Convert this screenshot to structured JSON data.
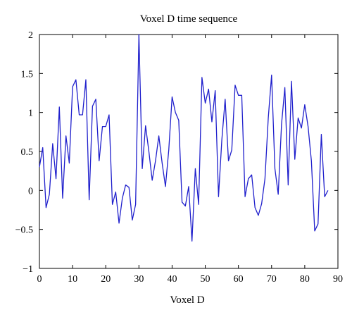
{
  "chart_data": {
    "type": "line",
    "title": "Voxel D time sequence",
    "xlabel": "Voxel D",
    "ylabel": "",
    "xlim": [
      0,
      90
    ],
    "ylim": [
      -1,
      2
    ],
    "xticks": [
      "0",
      "10",
      "20",
      "30",
      "40",
      "50",
      "60",
      "70",
      "80",
      "90"
    ],
    "yticks": [
      "2",
      "1.5",
      "1",
      "0.5",
      "0",
      "−0.5",
      "−1"
    ],
    "grid": false,
    "series": [
      {
        "color": "#1f1fcc",
        "x": [
          0,
          1,
          2,
          3,
          4,
          5,
          6,
          7,
          8,
          9,
          10,
          11,
          12,
          13,
          14,
          15,
          16,
          17,
          18,
          19,
          20,
          21,
          22,
          23,
          24,
          25,
          26,
          27,
          28,
          29,
          30,
          31,
          32,
          33,
          34,
          35,
          36,
          37,
          38,
          39,
          40,
          41,
          42,
          43,
          44,
          45,
          46,
          47,
          48,
          49,
          50,
          51,
          52,
          53,
          54,
          55,
          56,
          57,
          58,
          59,
          60,
          61,
          62,
          63,
          64,
          65,
          66,
          67,
          68,
          69,
          70,
          71,
          72,
          73,
          74,
          75,
          76,
          77,
          78,
          79,
          80,
          81,
          82,
          83,
          84,
          85,
          86,
          87
        ],
        "y": [
          0.3,
          0.55,
          -0.22,
          -0.05,
          0.6,
          0.15,
          1.07,
          -0.1,
          0.7,
          0.35,
          1.33,
          1.42,
          0.97,
          0.97,
          1.42,
          -0.12,
          1.08,
          1.17,
          0.38,
          0.82,
          0.82,
          0.97,
          -0.18,
          -0.02,
          -0.42,
          -0.1,
          0.07,
          0.04,
          -0.38,
          -0.18,
          2.0,
          0.28,
          0.83,
          0.5,
          0.13,
          0.38,
          0.7,
          0.35,
          0.05,
          0.52,
          1.2,
          1.0,
          0.9,
          -0.15,
          -0.2,
          0.05,
          -0.65,
          0.28,
          -0.18,
          1.45,
          1.12,
          1.3,
          0.88,
          1.28,
          -0.08,
          0.65,
          1.17,
          0.38,
          0.52,
          1.35,
          1.22,
          1.22,
          -0.08,
          0.15,
          0.2,
          -0.22,
          -0.32,
          -0.17,
          0.15,
          0.93,
          1.48,
          0.28,
          -0.05,
          0.85,
          1.32,
          0.07,
          1.4,
          0.4,
          0.93,
          0.8,
          1.1,
          0.82,
          0.38,
          -0.52,
          -0.43,
          0.72,
          -0.08,
          0.0
        ]
      }
    ]
  }
}
